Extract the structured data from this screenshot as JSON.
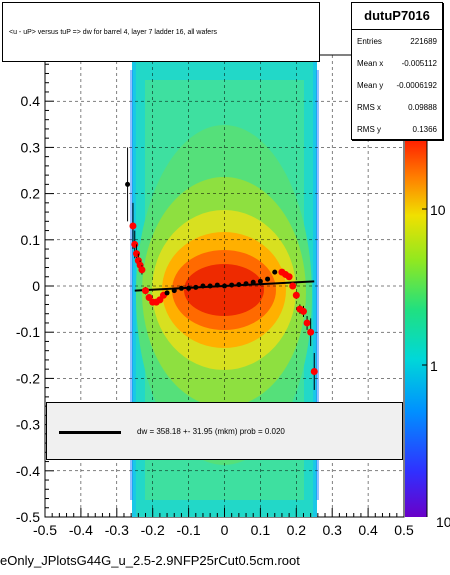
{
  "chart_data": {
    "type": "scatter",
    "title": "<u - uP>       versus  tuP =>  dw for barrel 4, layer 7 ladder 16, all wafers",
    "xlabel": "",
    "ylabel": "",
    "xlim": [
      -0.5,
      0.5
    ],
    "ylim": [
      -0.5,
      0.5
    ],
    "x_ticks": [
      "-0.5",
      "-0.4",
      "-0.3",
      "-0.2",
      "-0.1",
      "0",
      "0.1",
      "0.2",
      "0.3",
      "0.4",
      "0.5"
    ],
    "y_ticks": [
      "-0.5",
      "-0.4",
      "-0.3",
      "-0.2",
      "-0.1",
      "0",
      "0.1",
      "0.2",
      "0.3",
      "0.4",
      "0.5"
    ],
    "grid": true,
    "colorbar": {
      "scale": "log",
      "labels": [
        "1",
        "10",
        "10"
      ]
    },
    "profile_points": [
      {
        "x": -0.27,
        "y": 0.22,
        "err": 0.08,
        "color": "black"
      },
      {
        "x": -0.255,
        "y": 0.13,
        "err": 0.05,
        "color": "red"
      },
      {
        "x": -0.25,
        "y": 0.09,
        "err": 0.03,
        "color": "red"
      },
      {
        "x": -0.245,
        "y": 0.07,
        "err": 0.02,
        "color": "red"
      },
      {
        "x": -0.24,
        "y": 0.055,
        "err": 0.015,
        "color": "red"
      },
      {
        "x": -0.235,
        "y": 0.045,
        "err": 0.01,
        "color": "red"
      },
      {
        "x": -0.23,
        "y": 0.035,
        "err": 0.01,
        "color": "red"
      },
      {
        "x": -0.22,
        "y": -0.01,
        "err": 0.008,
        "color": "red"
      },
      {
        "x": -0.21,
        "y": -0.025,
        "err": 0.006,
        "color": "red"
      },
      {
        "x": -0.2,
        "y": -0.035,
        "err": 0.005,
        "color": "red"
      },
      {
        "x": -0.19,
        "y": -0.035,
        "err": 0.004,
        "color": "red"
      },
      {
        "x": -0.18,
        "y": -0.03,
        "err": 0.004,
        "color": "red"
      },
      {
        "x": -0.17,
        "y": -0.02,
        "err": 0.003,
        "color": "red"
      },
      {
        "x": -0.16,
        "y": -0.015,
        "err": 0.003,
        "color": "black"
      },
      {
        "x": -0.14,
        "y": -0.01,
        "err": 0.003,
        "color": "black"
      },
      {
        "x": -0.12,
        "y": -0.005,
        "err": 0.003,
        "color": "black"
      },
      {
        "x": -0.1,
        "y": -0.005,
        "err": 0.003,
        "color": "black"
      },
      {
        "x": -0.08,
        "y": -0.003,
        "err": 0.003,
        "color": "black"
      },
      {
        "x": -0.06,
        "y": 0.0,
        "err": 0.003,
        "color": "black"
      },
      {
        "x": -0.04,
        "y": 0.0,
        "err": 0.003,
        "color": "black"
      },
      {
        "x": -0.02,
        "y": 0.002,
        "err": 0.003,
        "color": "black"
      },
      {
        "x": 0.0,
        "y": 0.0,
        "err": 0.003,
        "color": "black"
      },
      {
        "x": 0.02,
        "y": 0.002,
        "err": 0.003,
        "color": "black"
      },
      {
        "x": 0.04,
        "y": 0.003,
        "err": 0.003,
        "color": "black"
      },
      {
        "x": 0.06,
        "y": 0.005,
        "err": 0.003,
        "color": "black"
      },
      {
        "x": 0.08,
        "y": 0.008,
        "err": 0.003,
        "color": "black"
      },
      {
        "x": 0.1,
        "y": 0.01,
        "err": 0.003,
        "color": "black"
      },
      {
        "x": 0.12,
        "y": 0.015,
        "err": 0.004,
        "color": "black"
      },
      {
        "x": 0.14,
        "y": 0.03,
        "err": 0.004,
        "color": "black"
      },
      {
        "x": 0.16,
        "y": 0.03,
        "err": 0.004,
        "color": "red"
      },
      {
        "x": 0.17,
        "y": 0.025,
        "err": 0.005,
        "color": "red"
      },
      {
        "x": 0.18,
        "y": 0.02,
        "err": 0.005,
        "color": "red"
      },
      {
        "x": 0.19,
        "y": 0.0,
        "err": 0.006,
        "color": "red"
      },
      {
        "x": 0.2,
        "y": -0.02,
        "err": 0.008,
        "color": "red"
      },
      {
        "x": 0.21,
        "y": -0.05,
        "err": 0.01,
        "color": "red"
      },
      {
        "x": 0.22,
        "y": -0.055,
        "err": 0.012,
        "color": "red"
      },
      {
        "x": 0.23,
        "y": -0.08,
        "err": 0.015,
        "color": "red"
      },
      {
        "x": 0.24,
        "y": -0.1,
        "err": 0.03,
        "color": "red"
      },
      {
        "x": 0.25,
        "y": -0.185,
        "err": 0.04,
        "color": "red"
      }
    ],
    "fit_line": {
      "x": [
        -0.25,
        0.25
      ],
      "y": [
        -0.01,
        0.01
      ]
    },
    "stats": {
      "name": "dutuP7016",
      "rows": [
        {
          "key": "Entries",
          "value": "221689"
        },
        {
          "key": "Mean x",
          "value": "-0.005112"
        },
        {
          "key": "Mean y",
          "value": "-0.0006192"
        },
        {
          "key": "RMS x",
          "value": "0.09888"
        },
        {
          "key": "RMS y",
          "value": "0.1366"
        }
      ]
    },
    "fit_legend": "dw =  358.18 +- 31.95 (mkm) prob = 0.020",
    "footer": "eOnly_JPlotsG44G_u_2.5-2.9NFP25rCut0.5cm.root",
    "y_tick_partial_top": "0.5"
  }
}
